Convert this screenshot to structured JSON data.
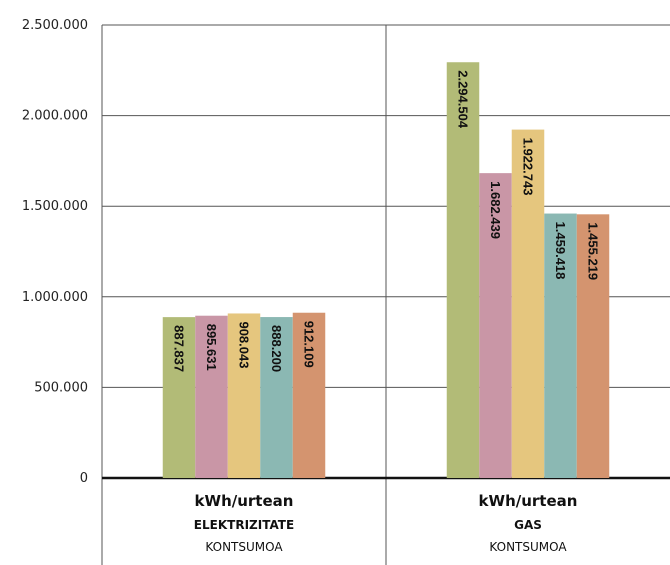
{
  "chart_data": {
    "type": "bar",
    "ylim": [
      0,
      2500000
    ],
    "y_ticks": [
      "0",
      "500.000",
      "1.000.000",
      "1.500.000",
      "2.000.000",
      "2.500.000"
    ],
    "grid": true,
    "categories": [
      {
        "line1": "kWh/urtean",
        "line2": "ELEKTRIZITATE",
        "line3": "KONTSUMOA"
      },
      {
        "line1": "kWh/urtean",
        "line2": "GAS",
        "line3": "KONTSUMOA"
      }
    ],
    "series": [
      {
        "color": "#b2bb77",
        "values": [
          887837,
          2294504
        ],
        "labels": [
          "887.837",
          "2.294.504"
        ]
      },
      {
        "color": "#c996a6",
        "values": [
          895631,
          1682439
        ],
        "labels": [
          "895.631",
          "1.682.439"
        ]
      },
      {
        "color": "#e5c67e",
        "values": [
          908043,
          1922743
        ],
        "labels": [
          "908.043",
          "1.922.743"
        ]
      },
      {
        "color": "#8bb8b3",
        "values": [
          888200,
          1459418
        ],
        "labels": [
          "888.200",
          "1.459.418"
        ]
      },
      {
        "color": "#d4946f",
        "values": [
          912109,
          1455219
        ],
        "labels": [
          "912.109",
          "1.455.219"
        ]
      }
    ]
  }
}
